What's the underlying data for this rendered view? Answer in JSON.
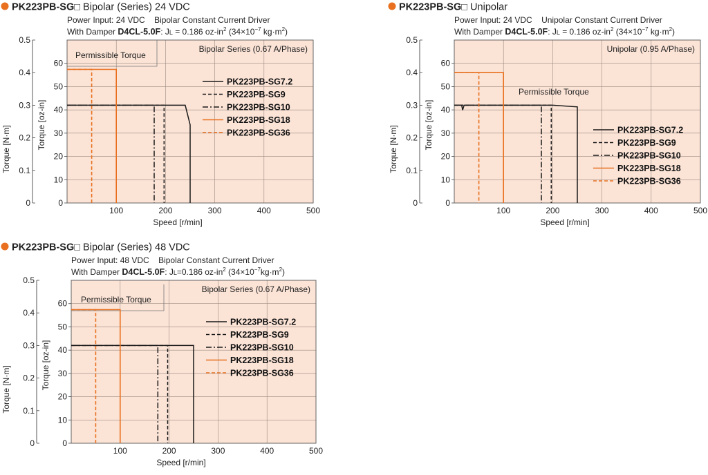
{
  "colors": {
    "plot_bg": "#fbe3d6",
    "accent": "#e8701e",
    "black": "#1a1a1a"
  },
  "chart_data": [
    {
      "type": "line",
      "title": "PK223PB-SG□ Bipolar (Series) 24 VDC",
      "title_model": "PK223PB-SG",
      "title_box": "□",
      "title_rest": " Bipolar (Series) 24 VDC",
      "power_input": "Power Input: 24 VDC",
      "driver": "Bipolar Constant Current Driver",
      "damper_prefix": "With Damper ",
      "damper_model": "D4CL-5.0F",
      "inertia_text": ": J",
      "inertia_sub": "L",
      "inertia_val": " = 0.186 oz-in",
      "inertia_sup": "2",
      "inertia_paren": " (34×10",
      "inertia_exp": "−7",
      "inertia_unit": " kg·m",
      "inertia_sup2": "2",
      "inertia_close": ")",
      "xlabel": "Speed [r/min]",
      "ylabel_left": "Torque [N·m]",
      "ylabel_right": "Torque [oz-in]",
      "xlim": [
        0,
        500
      ],
      "ylim": [
        0,
        0.5
      ],
      "ylim_ozin": [
        0,
        70
      ],
      "x_ticks": [
        100,
        200,
        300,
        400,
        500
      ],
      "y_ticks_nm": [
        "0",
        "0.1",
        "0.2",
        "0.3",
        "0.4",
        "0.5"
      ],
      "y_ticks_ozin": [
        "0",
        "10",
        "20",
        "30",
        "40",
        "50",
        "60"
      ],
      "grid": true,
      "mode_label": "Bipolar Series (0.67 A/Phase)",
      "permissible_label": "Permissible Torque",
      "series": [
        {
          "name": "PK223PB-SG7.2",
          "style": "solid",
          "color": "#1a1a1a",
          "x": [
            0,
            240,
            250,
            250
          ],
          "y": [
            0.3,
            0.3,
            0.24,
            0
          ]
        },
        {
          "name": "PK223PB-SG9",
          "style": "dashed",
          "color": "#1a1a1a",
          "x": [
            0,
            197,
            197
          ],
          "y": [
            0.3,
            0.3,
            0
          ]
        },
        {
          "name": "PK223PB-SG10",
          "style": "dashdot",
          "color": "#1a1a1a",
          "x": [
            0,
            177,
            177
          ],
          "y": [
            0.3,
            0.3,
            0
          ]
        },
        {
          "name": "PK223PB-SG18",
          "style": "solid",
          "color": "#e8701e",
          "x": [
            0,
            100,
            100
          ],
          "y": [
            0.41,
            0.41,
            0
          ]
        },
        {
          "name": "PK223PB-SG36",
          "style": "dashed",
          "color": "#e8701e",
          "x": [
            0,
            50,
            50
          ],
          "y": [
            0.41,
            0.41,
            0
          ]
        }
      ]
    },
    {
      "type": "line",
      "title": "PK223PB-SG□ Unipolar",
      "title_model": "PK223PB-SG",
      "title_box": "□",
      "title_rest": " Unipolar",
      "power_input": "Power Input: 24 VDC",
      "driver": "Unipolar Constant Current Driver",
      "damper_prefix": "With Damper ",
      "damper_model": "D4CL-5.0F",
      "inertia_text": ": J",
      "inertia_sub": "L",
      "inertia_val": " = 0.186 oz-in",
      "inertia_sup": "2",
      "inertia_paren": " (34×10",
      "inertia_exp": "−7",
      "inertia_unit": " kg·m",
      "inertia_sup2": "2",
      "inertia_close": ")",
      "xlabel": "Speed [r/min]",
      "ylabel_left": "Torque [N·m]",
      "ylabel_right": "Torque [oz-in]",
      "xlim": [
        0,
        500
      ],
      "ylim": [
        0,
        0.5
      ],
      "ylim_ozin": [
        0,
        70
      ],
      "x_ticks": [
        100,
        200,
        300,
        400,
        500
      ],
      "y_ticks_nm": [
        "0",
        "0.1",
        "0.2",
        "0.3",
        "0.4",
        "0.5"
      ],
      "y_ticks_ozin": [
        "0",
        "10",
        "20",
        "30",
        "40",
        "50",
        "60"
      ],
      "grid": true,
      "mode_label": "Unipolar (0.95 A/Phase)",
      "permissible_label": "Permissible Torque",
      "series": [
        {
          "name": "PK223PB-SG7.2",
          "style": "solid",
          "color": "#1a1a1a",
          "x": [
            0,
            15,
            17,
            20,
            100,
            200,
            250,
            250
          ],
          "y": [
            0.3,
            0.3,
            0.285,
            0.3,
            0.3,
            0.3,
            0.295,
            0
          ]
        },
        {
          "name": "PK223PB-SG9",
          "style": "dashed",
          "color": "#1a1a1a",
          "x": [
            0,
            197,
            197
          ],
          "y": [
            0.3,
            0.3,
            0
          ]
        },
        {
          "name": "PK223PB-SG10",
          "style": "dashdot",
          "color": "#1a1a1a",
          "x": [
            0,
            177,
            177
          ],
          "y": [
            0.3,
            0.3,
            0
          ]
        },
        {
          "name": "PK223PB-SG18",
          "style": "solid",
          "color": "#e8701e",
          "x": [
            0,
            100,
            100
          ],
          "y": [
            0.4,
            0.4,
            0
          ]
        },
        {
          "name": "PK223PB-SG36",
          "style": "dashed",
          "color": "#e8701e",
          "x": [
            0,
            50,
            50
          ],
          "y": [
            0.4,
            0.4,
            0
          ]
        }
      ]
    },
    {
      "type": "line",
      "title": "PK223PB-SG□ Bipolar (Series) 48 VDC",
      "title_model": "PK223PB-SG",
      "title_box": "□",
      "title_rest": " Bipolar (Series) 48 VDC",
      "power_input": "Power Input: 48 VDC",
      "driver": "Bipolar Constant Current Driver",
      "damper_prefix": "With Damper ",
      "damper_model": "D4CL-5.0F",
      "inertia_text": ": J",
      "inertia_sub": "L",
      "inertia_val": "=0.186 oz-in",
      "inertia_sup": "2",
      "inertia_paren": " (34×10",
      "inertia_exp": "−7",
      "inertia_unit": "kg·m",
      "inertia_sup2": "2",
      "inertia_close": ")",
      "xlabel": "Speed [r/min]",
      "ylabel_left": "Torque [N·m]",
      "ylabel_right": "Torque [oz-in]",
      "xlim": [
        0,
        500
      ],
      "ylim": [
        0,
        0.5
      ],
      "ylim_ozin": [
        0,
        70
      ],
      "x_ticks": [
        100,
        200,
        300,
        400,
        500
      ],
      "y_ticks_nm": [
        "0",
        "0.1",
        "0.2",
        "0.3",
        "0.4",
        "0.5"
      ],
      "y_ticks_ozin": [
        "0",
        "10",
        "20",
        "30",
        "40",
        "50",
        "60"
      ],
      "grid": true,
      "mode_label": "Bipolar Series (0.67 A/Phase)",
      "permissible_label": "Permissible Torque",
      "series": [
        {
          "name": "PK223PB-SG7.2",
          "style": "solid",
          "color": "#1a1a1a",
          "x": [
            0,
            250,
            250
          ],
          "y": [
            0.3,
            0.3,
            0
          ]
        },
        {
          "name": "PK223PB-SG9",
          "style": "dashed",
          "color": "#1a1a1a",
          "x": [
            0,
            197,
            197
          ],
          "y": [
            0.3,
            0.3,
            0
          ]
        },
        {
          "name": "PK223PB-SG10",
          "style": "dashdot",
          "color": "#1a1a1a",
          "x": [
            0,
            177,
            177
          ],
          "y": [
            0.3,
            0.3,
            0
          ]
        },
        {
          "name": "PK223PB-SG18",
          "style": "solid",
          "color": "#e8701e",
          "x": [
            0,
            100,
            100
          ],
          "y": [
            0.41,
            0.41,
            0
          ]
        },
        {
          "name": "PK223PB-SG36",
          "style": "dashed",
          "color": "#e8701e",
          "x": [
            0,
            50,
            50
          ],
          "y": [
            0.41,
            0.41,
            0
          ]
        }
      ]
    }
  ]
}
